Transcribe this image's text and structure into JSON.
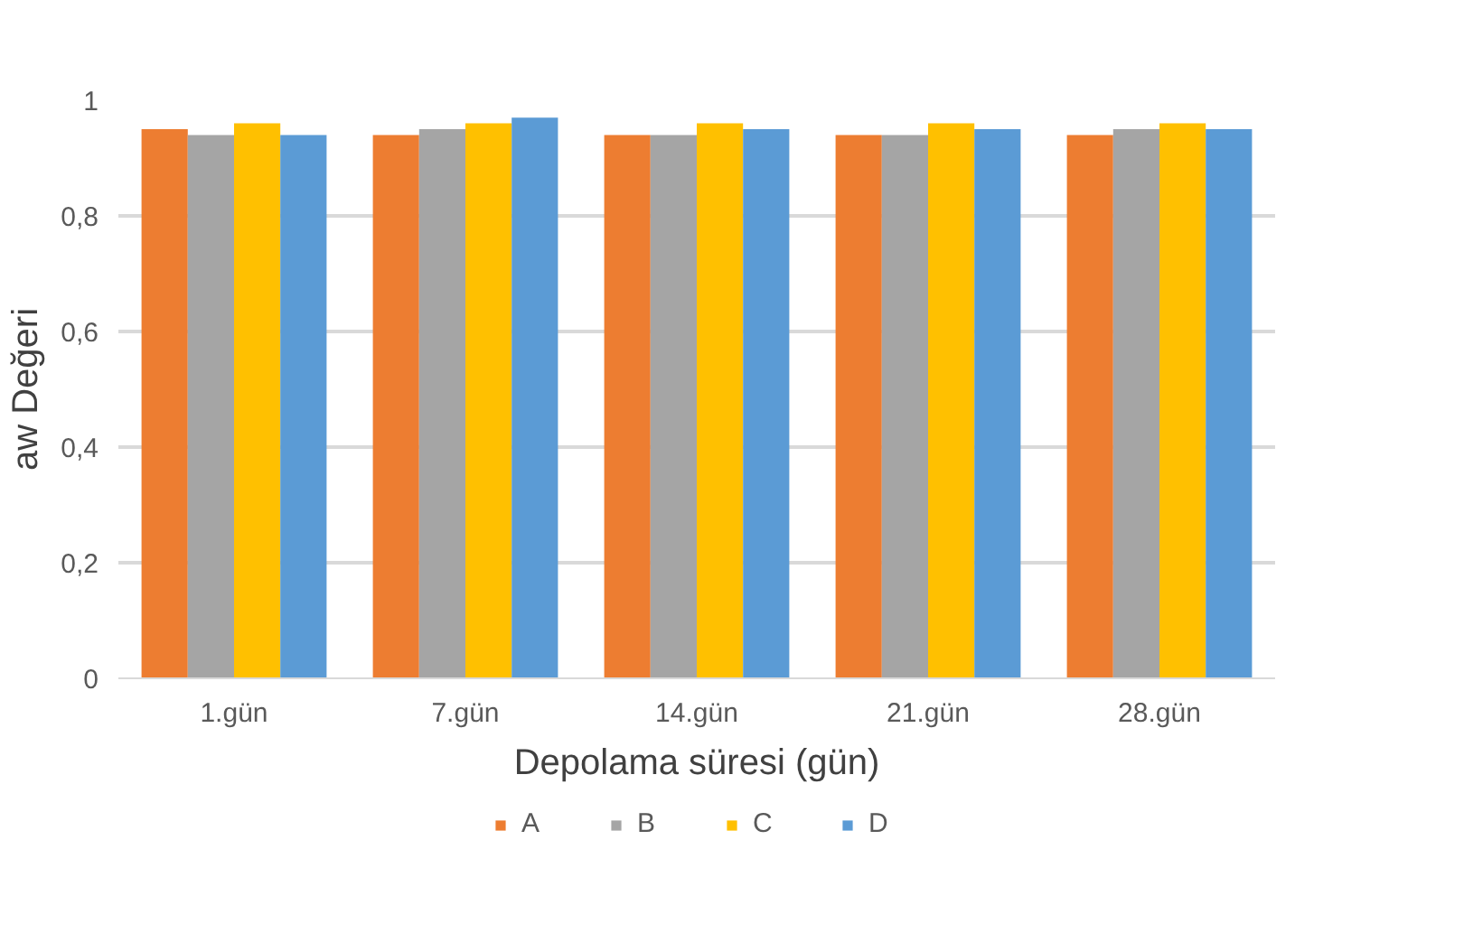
{
  "chart_data": {
    "type": "bar",
    "xlabel": "Depolama süresi (gün)",
    "ylabel": "aw Değeri",
    "categories": [
      "1.gün",
      "7.gün",
      "14.gün",
      "21.gün",
      "28.gün"
    ],
    "series": [
      {
        "name": "A",
        "color": "#ed7d31",
        "values": [
          0.95,
          0.94,
          0.94,
          0.94,
          0.94
        ]
      },
      {
        "name": "B",
        "color": "#a5a5a5",
        "values": [
          0.94,
          0.95,
          0.94,
          0.94,
          0.95
        ]
      },
      {
        "name": "C",
        "color": "#ffc000",
        "values": [
          0.96,
          0.96,
          0.96,
          0.96,
          0.96
        ]
      },
      {
        "name": "D",
        "color": "#5b9bd5",
        "values": [
          0.94,
          0.97,
          0.95,
          0.95,
          0.95
        ]
      }
    ],
    "ylim": [
      0,
      1
    ],
    "yticks": [
      0,
      {
        "value": 0.2,
        "label": "0,2"
      },
      {
        "value": 0.4,
        "label": "0,4"
      },
      {
        "value": 0.6,
        "label": "0,6"
      },
      {
        "value": 0.8,
        "label": "0,8"
      },
      1
    ],
    "grid": "y",
    "legend": "bottom"
  }
}
